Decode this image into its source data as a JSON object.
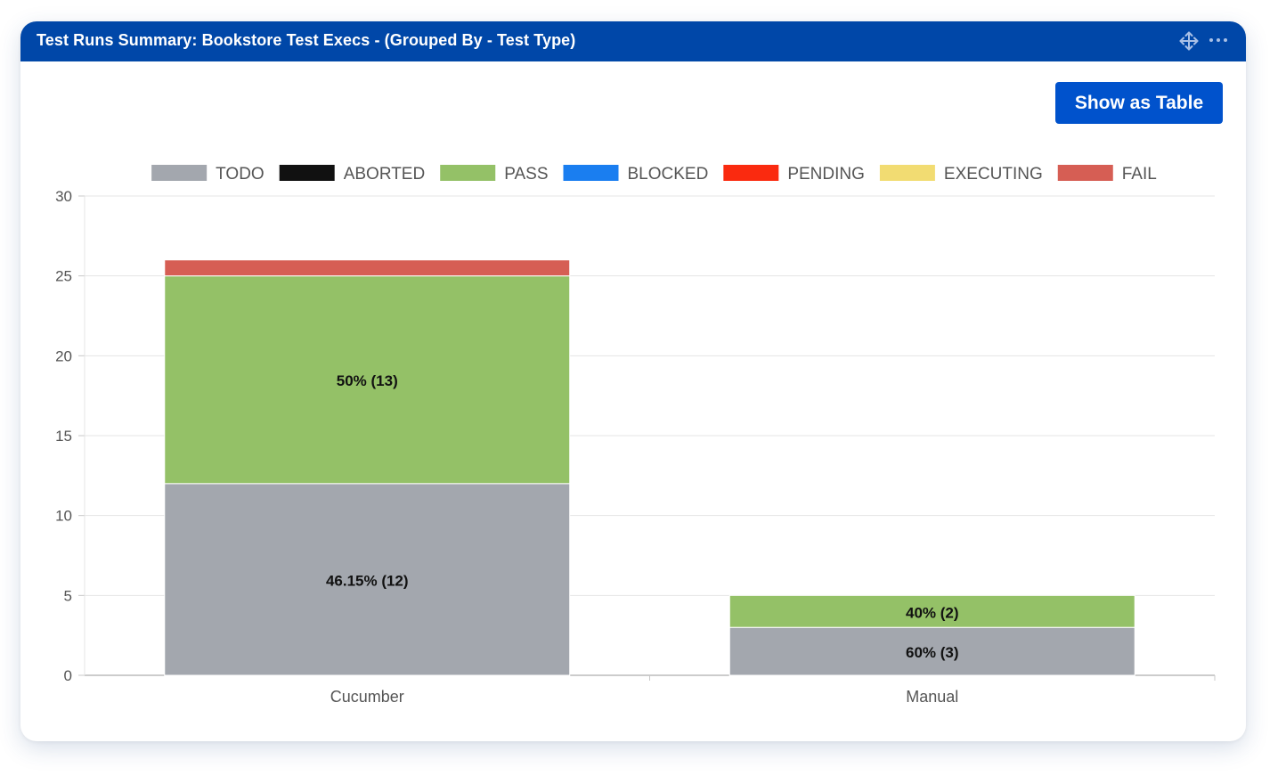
{
  "widget": {
    "title": "Test Runs Summary: Bookstore Test Execs - (Grouped By - Test Type)",
    "header_color": "#0047a8",
    "icons": [
      "move-icon",
      "more-options-icon"
    ],
    "show_table_label": "Show as Table",
    "button_color": "#0052cc"
  },
  "chart_data": {
    "type": "bar",
    "stacked": true,
    "categories": [
      "Cucumber",
      "Manual"
    ],
    "series": [
      {
        "name": "TODO",
        "color": "#a3a7ae",
        "values": [
          12,
          3
        ],
        "labels": [
          "46.15% (12)",
          "60% (3)"
        ]
      },
      {
        "name": "ABORTED",
        "color": "#111111",
        "values": [
          0,
          0
        ],
        "labels": [
          "",
          ""
        ]
      },
      {
        "name": "PASS",
        "color": "#94c167",
        "values": [
          13,
          2
        ],
        "labels": [
          "50% (13)",
          "40% (2)"
        ]
      },
      {
        "name": "BLOCKED",
        "color": "#1a7ef0",
        "values": [
          0,
          0
        ],
        "labels": [
          "",
          ""
        ]
      },
      {
        "name": "PENDING",
        "color": "#fa2a0f",
        "values": [
          0,
          0
        ],
        "labels": [
          "",
          ""
        ]
      },
      {
        "name": "EXECUTING",
        "color": "#f2dc72",
        "values": [
          0,
          0
        ],
        "labels": [
          "",
          ""
        ]
      },
      {
        "name": "FAIL",
        "color": "#d65e54",
        "values": [
          0,
          0
        ],
        "labels": [
          "",
          ""
        ]
      }
    ],
    "extra_segments": [
      {
        "category": "Cucumber",
        "series": "FAIL",
        "value": 1
      }
    ],
    "yticks": [
      0,
      5,
      10,
      15,
      20,
      25,
      30
    ],
    "ylim": [
      0,
      30
    ],
    "grid": true,
    "legend_position": "top-center"
  }
}
